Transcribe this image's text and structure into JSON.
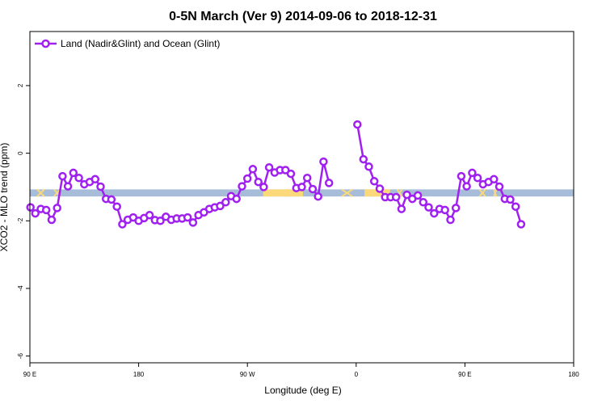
{
  "chart_data": {
    "type": "line",
    "title": "0-5N March (Ver 9)   2014-09-06 to 2018-12-31",
    "xlabel": "Longitude (deg E)",
    "ylabel": "XCO2 - MLO trend (ppm)",
    "xlim": [
      90,
      540
    ],
    "ylim": [
      -6.2,
      3.6
    ],
    "x_ticks": [
      {
        "value": 90,
        "label": "90 E"
      },
      {
        "value": 180,
        "label": "180"
      },
      {
        "value": 270,
        "label": "90 W"
      },
      {
        "value": 360,
        "label": "0"
      },
      {
        "value": 450,
        "label": "90 E"
      },
      {
        "value": 540,
        "label": "180"
      }
    ],
    "y_ticks": [
      {
        "value": 2,
        "label": "2"
      },
      {
        "value": 0,
        "label": "0"
      },
      {
        "value": -2,
        "label": "-2"
      },
      {
        "value": -4,
        "label": "-4"
      },
      {
        "value": -6,
        "label": "-6"
      }
    ],
    "grid": false,
    "legend": {
      "position": "top-left",
      "entries": [
        "Land (Nadir&Glint) and Ocean (Glint)"
      ]
    },
    "surface_band": {
      "y_range": [
        -1.28,
        -1.07
      ],
      "ocean_color": "#a7bcd8",
      "land_color": "#fbd97a",
      "land_segments": [
        [
          96,
          102
        ],
        [
          110,
          115
        ],
        [
          348,
          357
        ],
        [
          367,
          374
        ],
        [
          394,
          398
        ],
        [
          462,
          467
        ],
        [
          474,
          476
        ]
      ],
      "land_blocks": [
        [
          283,
          307
        ],
        [
          301,
          316
        ],
        [
          367,
          386
        ],
        [
          376,
          388
        ]
      ]
    },
    "series": [
      {
        "name": "Land (Nadir&Glint) and Ocean (Glint)",
        "color": "#a020f0",
        "segments": [
          [
            [
              90.5,
              -1.6
            ],
            [
              94.5,
              -1.78
            ],
            [
              99,
              -1.65
            ],
            [
              103.5,
              -1.68
            ],
            [
              108,
              -1.97
            ],
            [
              112.5,
              -1.62
            ],
            [
              117,
              -0.68
            ],
            [
              121.5,
              -0.98
            ],
            [
              126,
              -0.58
            ],
            [
              130.5,
              -0.73
            ],
            [
              135,
              -0.92
            ],
            [
              139.5,
              -0.85
            ],
            [
              144,
              -0.77
            ],
            [
              148.5,
              -0.99
            ],
            [
              153,
              -1.35
            ],
            [
              157.5,
              -1.37
            ],
            [
              162,
              -1.58
            ],
            [
              166.5,
              -2.1
            ],
            [
              171,
              -1.97
            ],
            [
              175.5,
              -1.9
            ],
            [
              180,
              -2.0
            ],
            [
              184.5,
              -1.92
            ],
            [
              189,
              -1.83
            ],
            [
              193.5,
              -1.98
            ],
            [
              198,
              -2.0
            ],
            [
              202.5,
              -1.88
            ],
            [
              207,
              -1.97
            ],
            [
              211.5,
              -1.93
            ],
            [
              216,
              -1.93
            ],
            [
              220.5,
              -1.9
            ],
            [
              225,
              -2.05
            ],
            [
              229.5,
              -1.83
            ],
            [
              234,
              -1.75
            ],
            [
              238.5,
              -1.65
            ],
            [
              243,
              -1.6
            ],
            [
              247.5,
              -1.56
            ],
            [
              252,
              -1.45
            ],
            [
              256.5,
              -1.27
            ],
            [
              261,
              -1.35
            ],
            [
              265.5,
              -0.98
            ],
            [
              270,
              -0.75
            ],
            [
              274.5,
              -0.47
            ],
            [
              279,
              -0.85
            ],
            [
              283.5,
              -1.0
            ],
            [
              288,
              -0.42
            ],
            [
              292.5,
              -0.57
            ],
            [
              297,
              -0.5
            ],
            [
              301.5,
              -0.5
            ],
            [
              306,
              -0.61
            ],
            [
              310.5,
              -1.03
            ],
            [
              315,
              -1.0
            ],
            [
              319.5,
              -0.73
            ],
            [
              324,
              -1.06
            ],
            [
              328.5,
              -1.28
            ],
            [
              333,
              -0.25
            ],
            [
              337.5,
              -0.88
            ]
          ],
          [
            [
              361,
              0.85
            ],
            [
              366,
              -0.18
            ],
            [
              370.5,
              -0.4
            ],
            [
              375,
              -0.83
            ],
            [
              379.5,
              -1.05
            ],
            [
              384,
              -1.3
            ],
            [
              388.5,
              -1.3
            ],
            [
              393,
              -1.3
            ],
            [
              397.5,
              -1.65
            ],
            [
              402,
              -1.23
            ],
            [
              406.5,
              -1.35
            ],
            [
              411,
              -1.25
            ],
            [
              415.5,
              -1.45
            ],
            [
              420,
              -1.6
            ],
            [
              424.5,
              -1.78
            ],
            [
              429,
              -1.65
            ],
            [
              433.5,
              -1.68
            ],
            [
              438,
              -1.97
            ],
            [
              442.5,
              -1.62
            ],
            [
              447,
              -0.68
            ],
            [
              451.5,
              -0.98
            ],
            [
              456,
              -0.58
            ],
            [
              460.5,
              -0.73
            ],
            [
              465,
              -0.92
            ],
            [
              469.5,
              -0.85
            ],
            [
              474,
              -0.77
            ],
            [
              478.5,
              -0.99
            ],
            [
              483,
              -1.35
            ],
            [
              487.5,
              -1.37
            ],
            [
              492,
              -1.58
            ],
            [
              496.5,
              -2.1
            ]
          ]
        ]
      }
    ]
  }
}
